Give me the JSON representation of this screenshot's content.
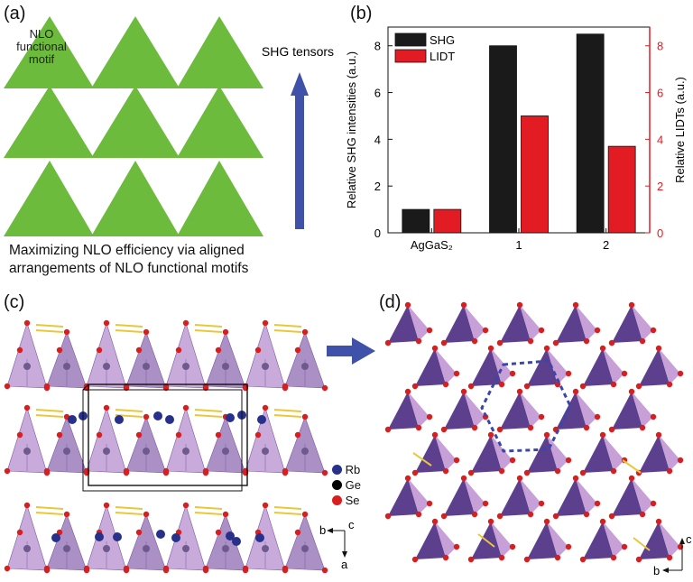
{
  "panels": {
    "a": {
      "label": "(a)",
      "motif_label": [
        "NLO",
        "functional",
        "motif"
      ],
      "arrow_label": "SHG tensors",
      "caption": [
        "Maximizing NLO efficiency via aligned",
        "arrangements of NLO functional motifs"
      ],
      "colors": {
        "triangle": "#6cbb3c",
        "arrow": "#3f51a8"
      }
    },
    "b": {
      "label": "(b)"
    },
    "c": {
      "label": "(c)",
      "legend": [
        {
          "name": "Rb",
          "color": "#27308a"
        },
        {
          "name": "Ge",
          "color": "#000000"
        },
        {
          "name": "Se",
          "color": "#d81e1e"
        }
      ],
      "axes": {
        "up": "c",
        "left": "b",
        "down": "a"
      },
      "colors": {
        "tetra": "#b78fcf",
        "tetra_dark": "#8f6bb2",
        "bond": "#e8c83a"
      }
    },
    "d": {
      "label": "(d)",
      "axes": {
        "up": "c",
        "left": "b"
      },
      "colors": {
        "tetra_dark": "#5c3f8d",
        "tetra_light": "#c7a0d8",
        "outline": "#3b46a8"
      }
    }
  },
  "chart_data": {
    "type": "bar",
    "categories": [
      "AgGaS₂",
      "1",
      "2"
    ],
    "series": [
      {
        "name": "SHG",
        "values": [
          1.0,
          8.0,
          8.5
        ],
        "color": "#1a1a1a",
        "axis": "left"
      },
      {
        "name": "LIDT",
        "values": [
          1.0,
          5.0,
          3.7
        ],
        "color": "#e31b23",
        "axis": "right"
      }
    ],
    "ylabel": "Relative SHG intensities (a.u.)",
    "y2label": "Relative LIDTs (a.u.)",
    "ylim": [
      0,
      8.8
    ],
    "y2lim": [
      0,
      8.8
    ],
    "yticks": [
      0,
      2,
      4,
      6,
      8
    ],
    "legend_position": "top-left",
    "right_axis_color": "#e31b23"
  }
}
